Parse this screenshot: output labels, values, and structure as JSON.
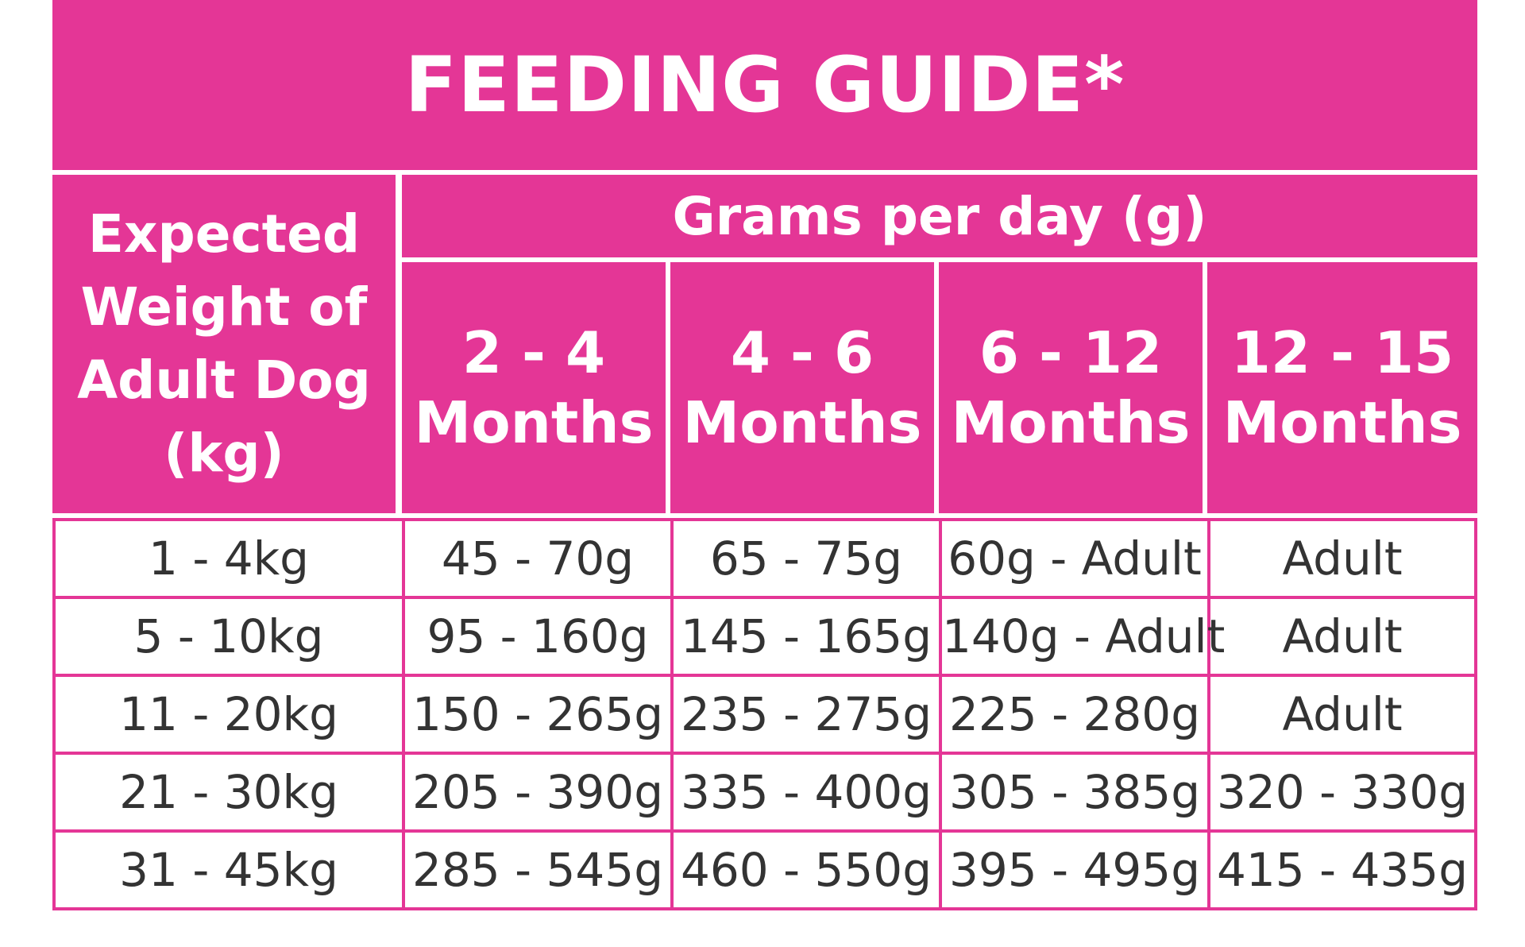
{
  "title": "FEEDING GUIDE*",
  "header": {
    "weight_label": [
      "Expected",
      "Weight of",
      "Adult Dog",
      "(kg)"
    ],
    "grams_label": "Grams per day (g)",
    "age_columns": [
      {
        "range": "2 - 4",
        "unit": "Months"
      },
      {
        "range": "4 - 6",
        "unit": "Months"
      },
      {
        "range": "6 - 12",
        "unit": "Months"
      },
      {
        "range": "12 - 15",
        "unit": "Months"
      }
    ]
  },
  "rows": [
    {
      "weight": "1 - 4kg",
      "values": [
        "45 - 70g",
        "65 - 75g",
        "60g - Adult",
        "Adult"
      ]
    },
    {
      "weight": "5 - 10kg",
      "values": [
        "95 - 160g",
        "145 - 165g",
        "140g - Adult",
        "Adult"
      ]
    },
    {
      "weight": "11 - 20kg",
      "values": [
        "150 - 265g",
        "235 - 275g",
        "225 - 280g",
        "Adult"
      ]
    },
    {
      "weight": "21 - 30kg",
      "values": [
        "205 - 390g",
        "335 - 400g",
        "305 - 385g",
        "320 - 330g"
      ]
    },
    {
      "weight": "31 - 45kg",
      "values": [
        "285 - 545g",
        "460 - 550g",
        "395 - 495g",
        "415 - 435g"
      ]
    }
  ],
  "colors": {
    "accent": "#e43696",
    "text": "#333333",
    "background": "#ffffff"
  }
}
